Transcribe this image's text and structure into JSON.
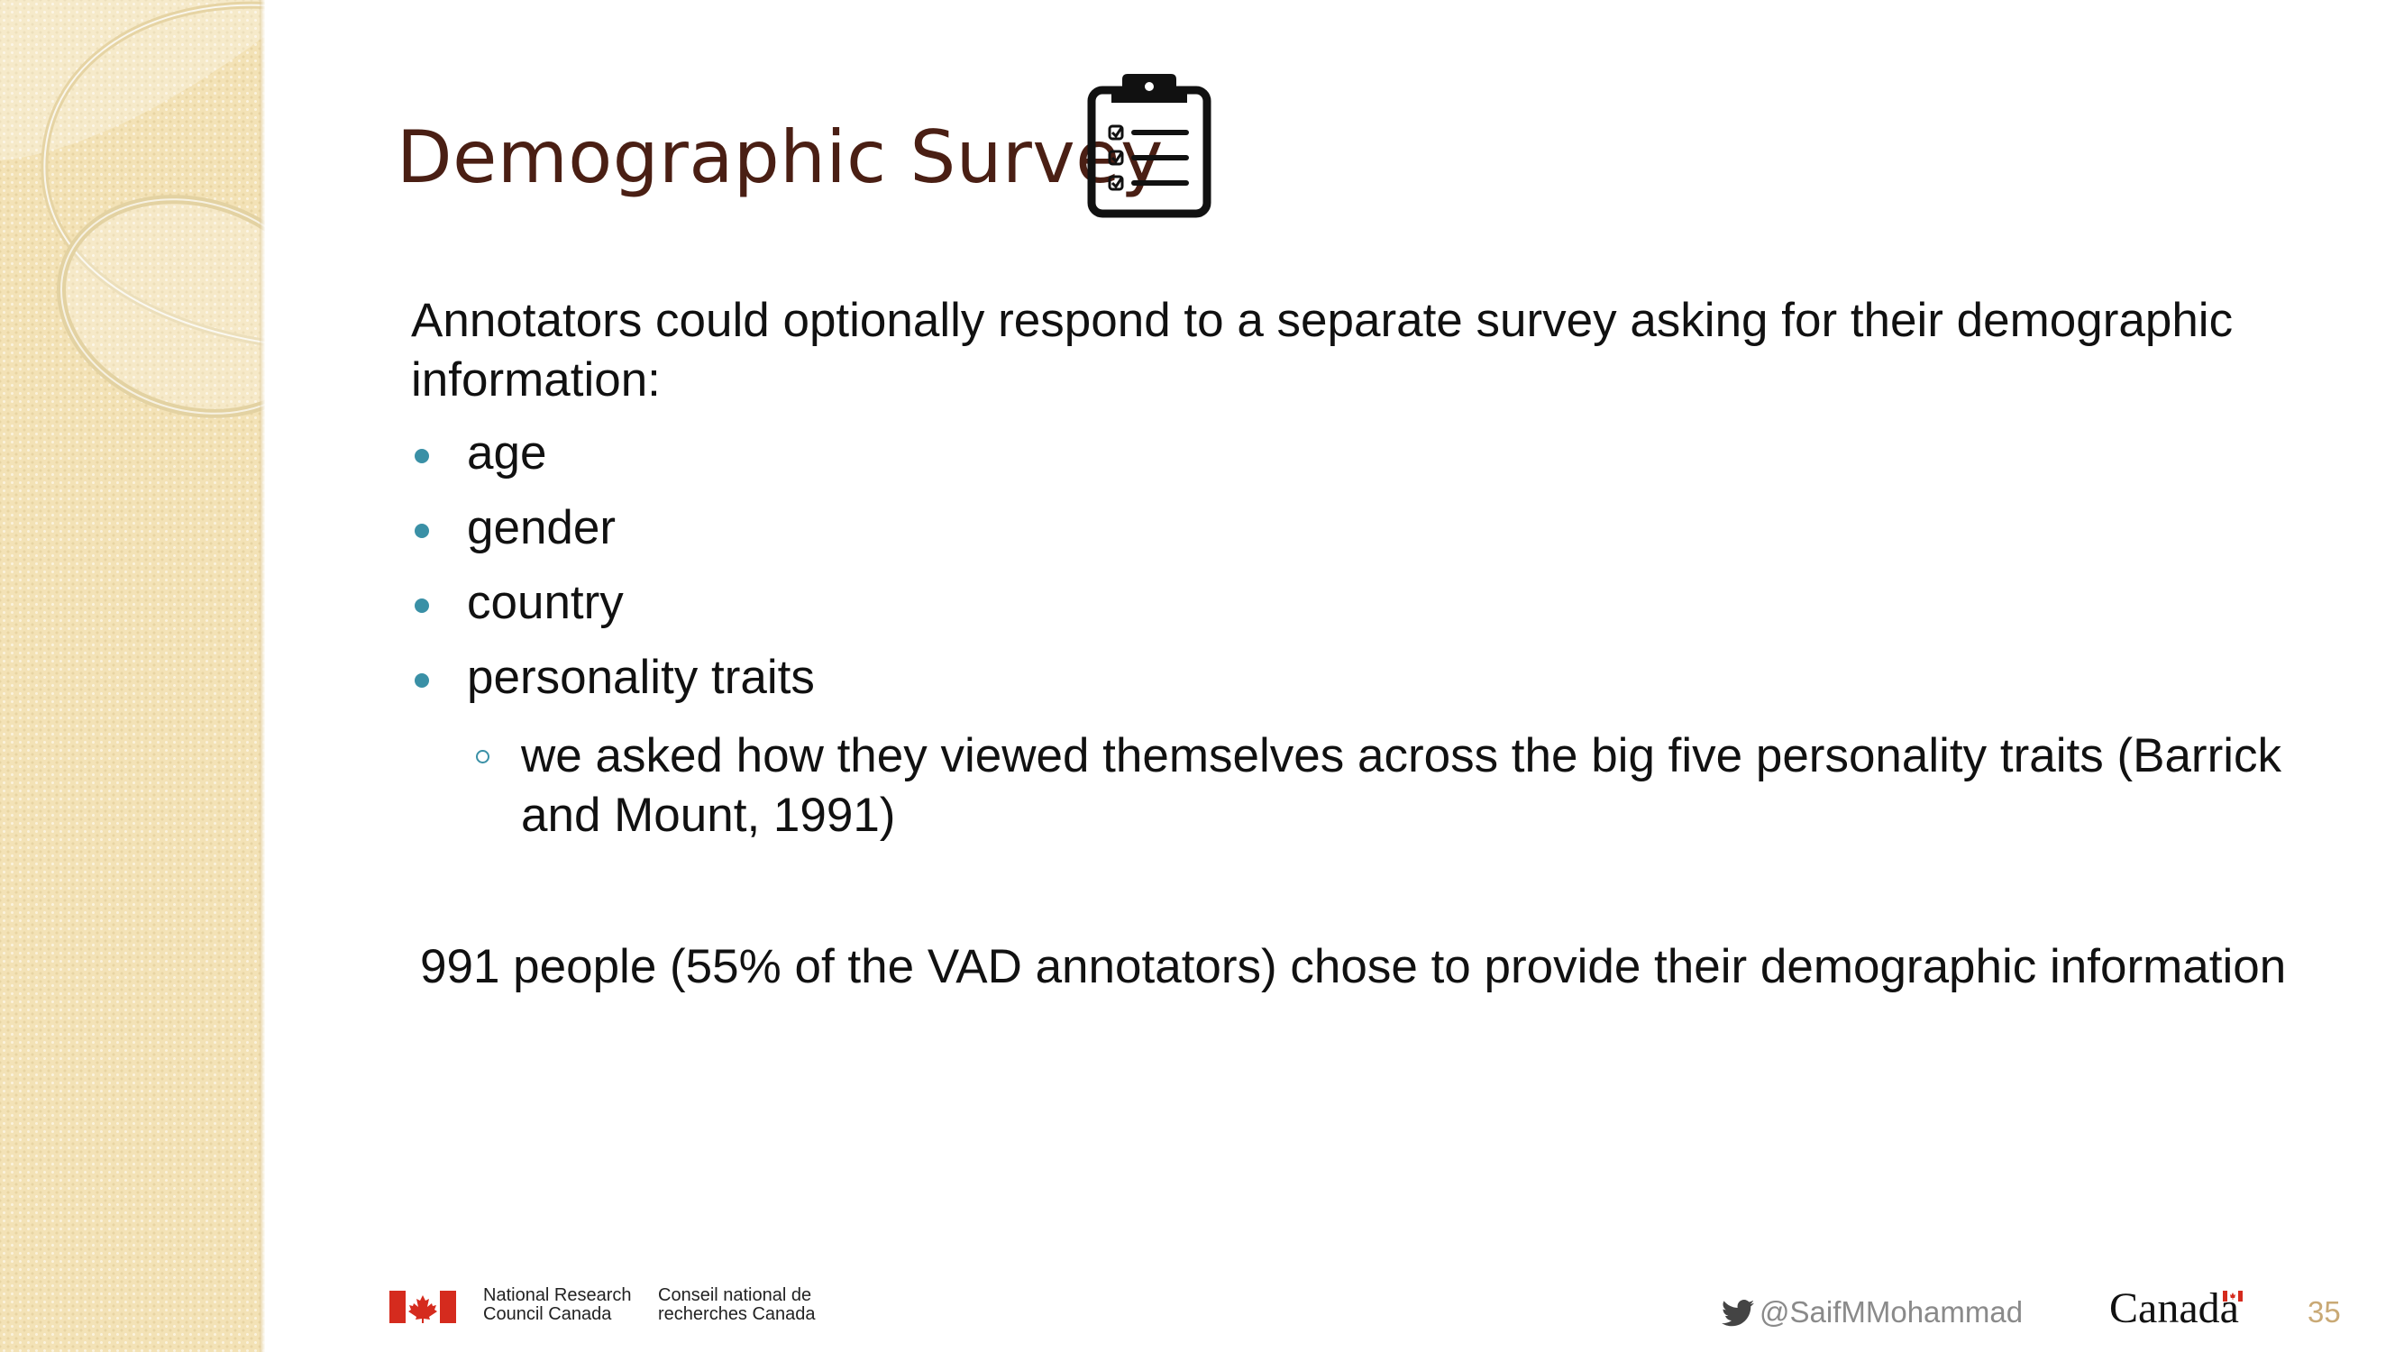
{
  "slide": {
    "title": "Demographic Survey",
    "intro": "Annotators could optionally respond to a separate survey asking for their demographic information:",
    "bullets": [
      "age",
      "gender",
      "country",
      "personality traits"
    ],
    "sub_bullet": "we asked how they viewed themselves across the big five personality traits (Barrick and Mount, 1991)",
    "summary": "991 people (55% of the VAD annotators) chose to provide their demographic information",
    "number": "35"
  },
  "footer": {
    "org_en_line1": "National Research",
    "org_en_line2": "Council Canada",
    "org_fr_line1": "Conseil national de",
    "org_fr_line2": "recherches Canada",
    "twitter_handle": "@SaifMMohammad",
    "wordmark": "Canada"
  },
  "colors": {
    "title": "#4a1f14",
    "bullet": "#3a90a6",
    "side_band": "#f3e2b6",
    "slide_number": "#c9a975"
  },
  "icons": [
    "clipboard-checklist-icon",
    "canada-flag-icon",
    "twitter-bird-icon"
  ]
}
